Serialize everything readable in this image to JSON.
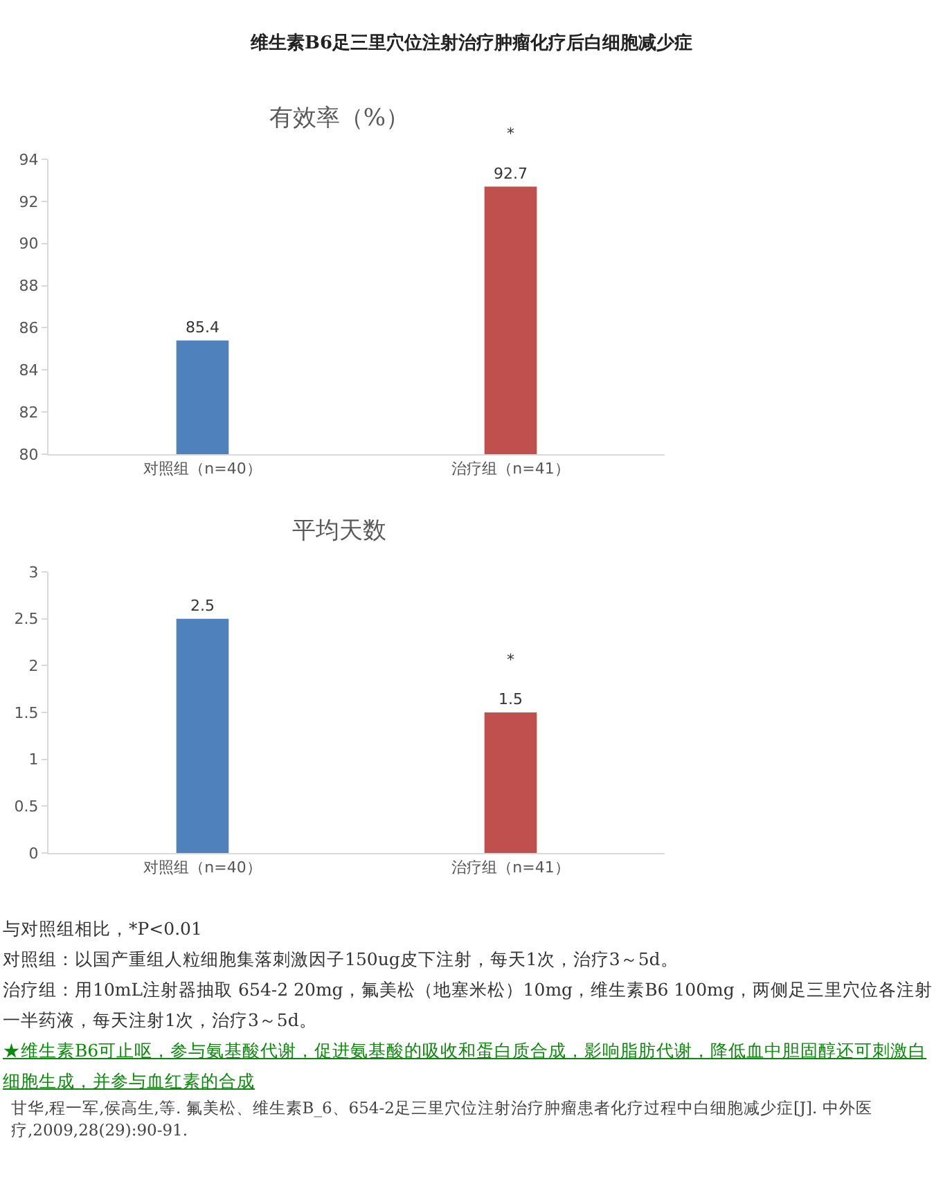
{
  "chart_data": [
    {
      "type": "bar",
      "title": "维生素B6足三里穴位注射治疗肿瘤化疗后白细胞减少症",
      "subtitle": "有效率（%）",
      "categories": [
        "对照组（n=40）",
        "治疗组（n=41）"
      ],
      "values": [
        85.4,
        92.7
      ],
      "colors": [
        "#4f81bd",
        "#c0504d"
      ],
      "ylim": [
        80,
        94
      ],
      "yticks": [
        80,
        82,
        84,
        86,
        88,
        90,
        92,
        94
      ],
      "grid": false,
      "data_labels": true,
      "annotations": [
        {
          "text": "*",
          "x": "治疗组（n=41）",
          "y": 92.7
        }
      ]
    },
    {
      "type": "bar",
      "title": "平均天数",
      "categories": [
        "对照组（n=40）",
        "治疗组（n=41）"
      ],
      "values": [
        2.5,
        1.5
      ],
      "colors": [
        "#4f81bd",
        "#c0504d"
      ],
      "ylim": [
        0,
        3
      ],
      "yticks": [
        0,
        0.5,
        1,
        1.5,
        2,
        2.5,
        3
      ],
      "grid": false,
      "data_labels": true,
      "annotations": [
        {
          "text": "*",
          "x": "治疗组（n=41）",
          "y": 1.5
        },
        "与对照组相比，*P<0.01",
        "对照组：以国产重组人粒细胞集落刺激因子150ug皮下注射，每天1次，治疗3～5d。",
        "治疗组：用10mL注射器抽取 654-2 20mg，氟美松（地塞米松）10mg，维生素B6 100mg，两侧足三里穴位各注射一半药液，每天注射1次，治疗3～5d。",
        "★维生素B6可止呕，参与氨基酸代谢，促进氨基酸的吸收和蛋白质合成，影响脂肪代谢，降低血中胆固醇还可刺激白细胞生成，并参与血红素的合成",
        "甘华,程一军,侯高生,等. 氟美松、维生素B_6、654-2足三里穴位注射治疗肿瘤患者化疗过程中白细胞减少症[J]. 中外医疗,2009,28(29):90-91."
      ]
    }
  ]
}
